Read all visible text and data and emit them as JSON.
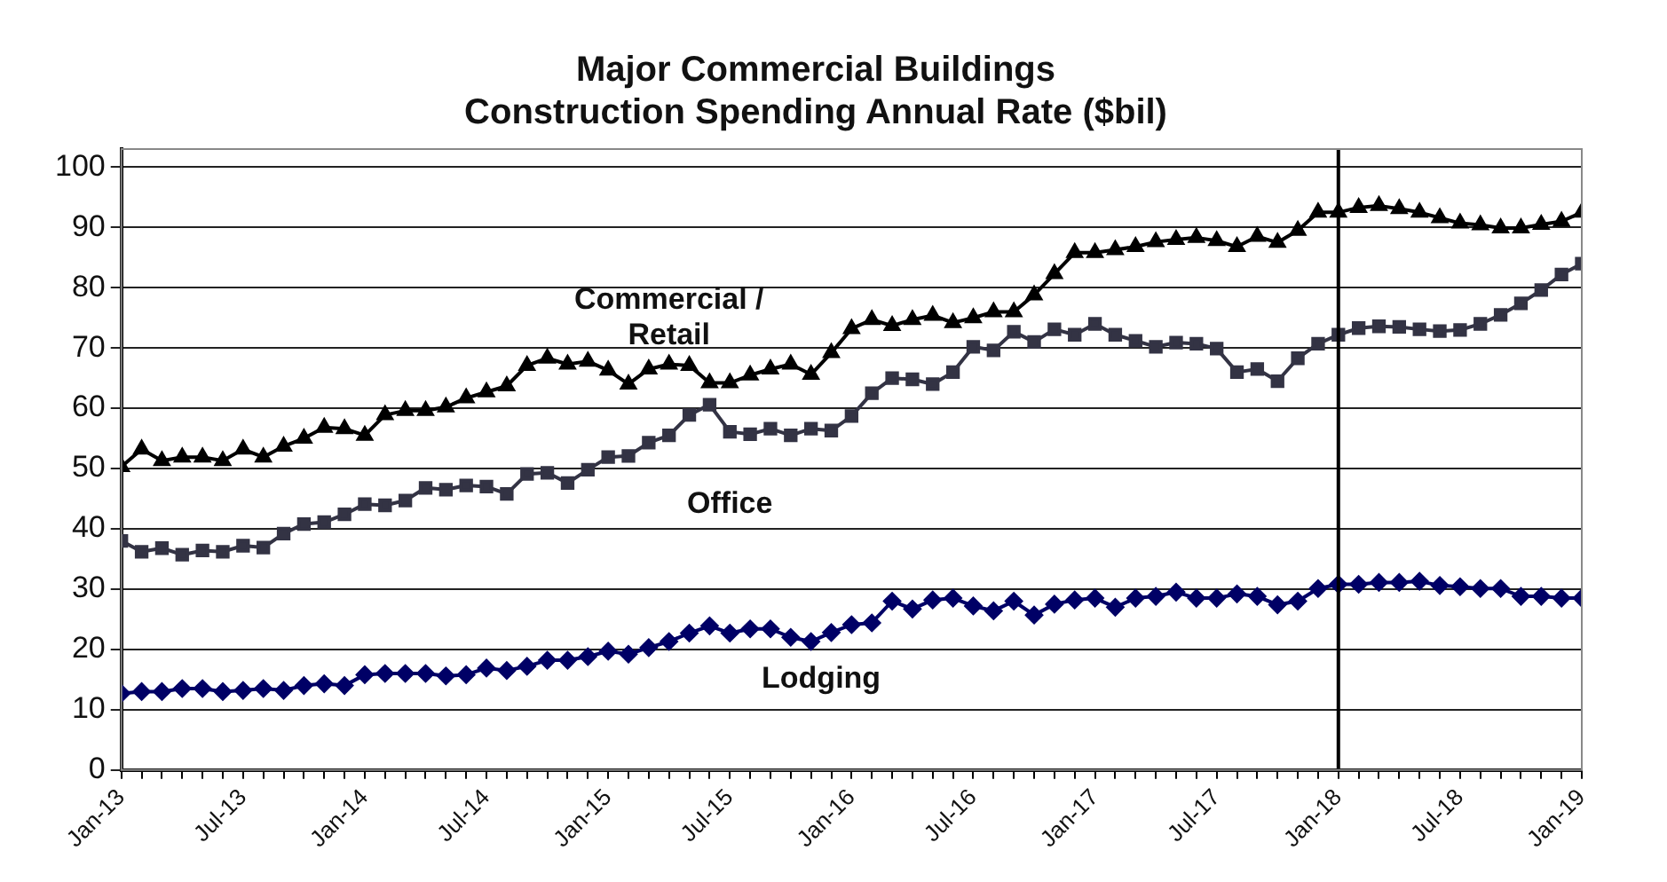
{
  "chart_data": {
    "type": "line",
    "title": "Major Commercial Buildings",
    "subtitle": "Construction Spending Annual Rate ($bil)",
    "x": [
      "2013-01",
      "2013-02",
      "2013-03",
      "2013-04",
      "2013-05",
      "2013-06",
      "2013-07",
      "2013-08",
      "2013-09",
      "2013-10",
      "2013-11",
      "2013-12",
      "2014-01",
      "2014-02",
      "2014-03",
      "2014-04",
      "2014-05",
      "2014-06",
      "2014-07",
      "2014-08",
      "2014-09",
      "2014-10",
      "2014-11",
      "2014-12",
      "2015-01",
      "2015-02",
      "2015-03",
      "2015-04",
      "2015-05",
      "2015-06",
      "2015-07",
      "2015-08",
      "2015-09",
      "2015-10",
      "2015-11",
      "2015-12",
      "2016-01",
      "2016-02",
      "2016-03",
      "2016-04",
      "2016-05",
      "2016-06",
      "2016-07",
      "2016-08",
      "2016-09",
      "2016-10",
      "2016-11",
      "2016-12",
      "2017-01",
      "2017-02",
      "2017-03",
      "2017-04",
      "2017-05",
      "2017-06",
      "2017-07",
      "2017-08",
      "2017-09",
      "2017-10",
      "2017-11",
      "2017-12",
      "2018-01",
      "2018-02",
      "2018-03",
      "2018-04",
      "2018-05",
      "2018-06",
      "2018-07",
      "2018-08",
      "2018-09",
      "2018-10",
      "2018-11",
      "2018-12",
      "2019-01"
    ],
    "series": [
      {
        "name": "Commercial / Retail",
        "color": "#000000",
        "marker": "triangle",
        "values": [
          50.3,
          53.2,
          51.3,
          51.9,
          51.9,
          51.3,
          53.2,
          51.9,
          53.7,
          55.0,
          56.8,
          56.6,
          55.5,
          58.9,
          59.6,
          59.6,
          60.2,
          61.7,
          62.7,
          63.7,
          67.1,
          68.3,
          67.3,
          67.8,
          66.3,
          64.0,
          66.5,
          67.3,
          67.1,
          64.2,
          64.2,
          65.5,
          66.5,
          67.3,
          65.6,
          69.2,
          73.2,
          74.7,
          73.7,
          74.7,
          75.4,
          74.2,
          75.0,
          76.0,
          76.0,
          78.8,
          82.3,
          85.8,
          85.8,
          86.3,
          86.8,
          87.6,
          88.0,
          88.3,
          87.8,
          86.8,
          88.5,
          87.5,
          89.5,
          92.5,
          92.5,
          93.3,
          93.6,
          93.1,
          92.5,
          91.6,
          90.7,
          90.4,
          89.9,
          89.9,
          90.5,
          91.0,
          92.5
        ]
      },
      {
        "name": "Office",
        "color": "#333344",
        "marker": "square",
        "values": [
          38.0,
          36.2,
          36.8,
          35.7,
          36.4,
          36.2,
          37.2,
          36.9,
          39.2,
          40.8,
          41.1,
          42.4,
          44.1,
          43.9,
          44.7,
          46.8,
          46.5,
          47.2,
          47.0,
          45.8,
          49.1,
          49.3,
          47.6,
          49.8,
          51.9,
          52.1,
          54.3,
          55.5,
          58.9,
          60.6,
          56.1,
          55.7,
          56.6,
          55.5,
          56.6,
          56.3,
          58.7,
          62.5,
          65.0,
          64.8,
          64.0,
          66.0,
          70.2,
          69.6,
          72.7,
          71.0,
          73.1,
          72.2,
          74.0,
          72.2,
          71.2,
          70.2,
          70.9,
          70.7,
          69.9,
          66.0,
          66.5,
          64.5,
          68.3,
          70.7,
          72.2,
          73.3,
          73.6,
          73.5,
          73.1,
          72.8,
          73.0,
          74.0,
          75.5,
          77.4,
          79.6,
          82.2,
          84.0
        ]
      },
      {
        "name": "Lodging",
        "color": "#000066",
        "marker": "diamond",
        "values": [
          12.7,
          13.0,
          13.0,
          13.5,
          13.5,
          13.0,
          13.2,
          13.5,
          13.2,
          14.0,
          14.3,
          14.0,
          15.8,
          16.0,
          16.0,
          16.0,
          15.6,
          15.8,
          16.9,
          16.5,
          17.2,
          18.2,
          18.2,
          18.8,
          19.7,
          19.2,
          20.3,
          21.3,
          22.7,
          23.9,
          22.7,
          23.4,
          23.4,
          22.0,
          21.3,
          22.8,
          24.1,
          24.4,
          28.0,
          26.7,
          28.2,
          28.5,
          27.2,
          26.4,
          28.0,
          25.7,
          27.5,
          28.2,
          28.5,
          27.0,
          28.5,
          28.8,
          29.5,
          28.5,
          28.5,
          29.2,
          28.8,
          27.4,
          28.0,
          30.1,
          30.8,
          30.8,
          31.1,
          31.1,
          31.3,
          30.6,
          30.4,
          30.1,
          30.1,
          28.8,
          28.8,
          28.5,
          28.5
        ]
      }
    ],
    "xlim": [
      "2013-01",
      "2019-01"
    ],
    "xticks": [
      {
        "value": "2013-01",
        "label": "Jan-13"
      },
      {
        "value": "2013-02",
        "label": null
      },
      {
        "value": "2013-03",
        "label": null
      },
      {
        "value": "2013-04",
        "label": null
      },
      {
        "value": "2013-05",
        "label": null
      },
      {
        "value": "2013-06",
        "label": null
      },
      {
        "value": "2013-07",
        "label": "Jul-13"
      },
      {
        "value": "2013-08",
        "label": null
      },
      {
        "value": "2013-09",
        "label": null
      },
      {
        "value": "2013-10",
        "label": null
      },
      {
        "value": "2013-11",
        "label": null
      },
      {
        "value": "2013-12",
        "label": null
      },
      {
        "value": "2014-01",
        "label": "Jan-14"
      },
      {
        "value": "2014-02",
        "label": null
      },
      {
        "value": "2014-03",
        "label": null
      },
      {
        "value": "2014-04",
        "label": null
      },
      {
        "value": "2014-05",
        "label": null
      },
      {
        "value": "2014-06",
        "label": null
      },
      {
        "value": "2014-07",
        "label": "Jul-14"
      },
      {
        "value": "2014-08",
        "label": null
      },
      {
        "value": "2014-09",
        "label": null
      },
      {
        "value": "2014-10",
        "label": null
      },
      {
        "value": "2014-11",
        "label": null
      },
      {
        "value": "2014-12",
        "label": null
      },
      {
        "value": "2015-01",
        "label": "Jan-15"
      },
      {
        "value": "2015-02",
        "label": null
      },
      {
        "value": "2015-03",
        "label": null
      },
      {
        "value": "2015-04",
        "label": null
      },
      {
        "value": "2015-05",
        "label": null
      },
      {
        "value": "2015-06",
        "label": null
      },
      {
        "value": "2015-07",
        "label": "Jul-15"
      },
      {
        "value": "2015-08",
        "label": null
      },
      {
        "value": "2015-09",
        "label": null
      },
      {
        "value": "2015-10",
        "label": null
      },
      {
        "value": "2015-11",
        "label": null
      },
      {
        "value": "2015-12",
        "label": null
      },
      {
        "value": "2016-01",
        "label": "Jan-16"
      },
      {
        "value": "2016-02",
        "label": null
      },
      {
        "value": "2016-03",
        "label": null
      },
      {
        "value": "2016-04",
        "label": null
      },
      {
        "value": "2016-05",
        "label": null
      },
      {
        "value": "2016-06",
        "label": null
      },
      {
        "value": "2016-07",
        "label": "Jul-16"
      },
      {
        "value": "2016-08",
        "label": null
      },
      {
        "value": "2016-09",
        "label": null
      },
      {
        "value": "2016-10",
        "label": null
      },
      {
        "value": "2016-11",
        "label": null
      },
      {
        "value": "2016-12",
        "label": null
      },
      {
        "value": "2017-01",
        "label": "Jan-17"
      },
      {
        "value": "2017-02",
        "label": null
      },
      {
        "value": "2017-03",
        "label": null
      },
      {
        "value": "2017-04",
        "label": null
      },
      {
        "value": "2017-05",
        "label": null
      },
      {
        "value": "2017-06",
        "label": null
      },
      {
        "value": "2017-07",
        "label": "Jul-17"
      },
      {
        "value": "2017-08",
        "label": null
      },
      {
        "value": "2017-09",
        "label": null
      },
      {
        "value": "2017-10",
        "label": null
      },
      {
        "value": "2017-11",
        "label": null
      },
      {
        "value": "2017-12",
        "label": null
      },
      {
        "value": "2018-01",
        "label": "Jan-18"
      },
      {
        "value": "2018-02",
        "label": null
      },
      {
        "value": "2018-03",
        "label": null
      },
      {
        "value": "2018-04",
        "label": null
      },
      {
        "value": "2018-05",
        "label": null
      },
      {
        "value": "2018-06",
        "label": null
      },
      {
        "value": "2018-07",
        "label": "Jul-18"
      },
      {
        "value": "2018-08",
        "label": null
      },
      {
        "value": "2018-09",
        "label": null
      },
      {
        "value": "2018-10",
        "label": null
      },
      {
        "value": "2018-11",
        "label": null
      },
      {
        "value": "2018-12",
        "label": null
      },
      {
        "value": "2019-01",
        "label": "Jan-19"
      }
    ],
    "ylim": [
      0,
      103
    ],
    "yticks": [
      0,
      10,
      20,
      30,
      40,
      50,
      60,
      70,
      80,
      90,
      100
    ],
    "grid": "y",
    "legend": false,
    "line_style": "solid",
    "ref_lines": [
      {
        "axis": "x",
        "value": "2018-01",
        "color": "#000000"
      }
    ]
  }
}
